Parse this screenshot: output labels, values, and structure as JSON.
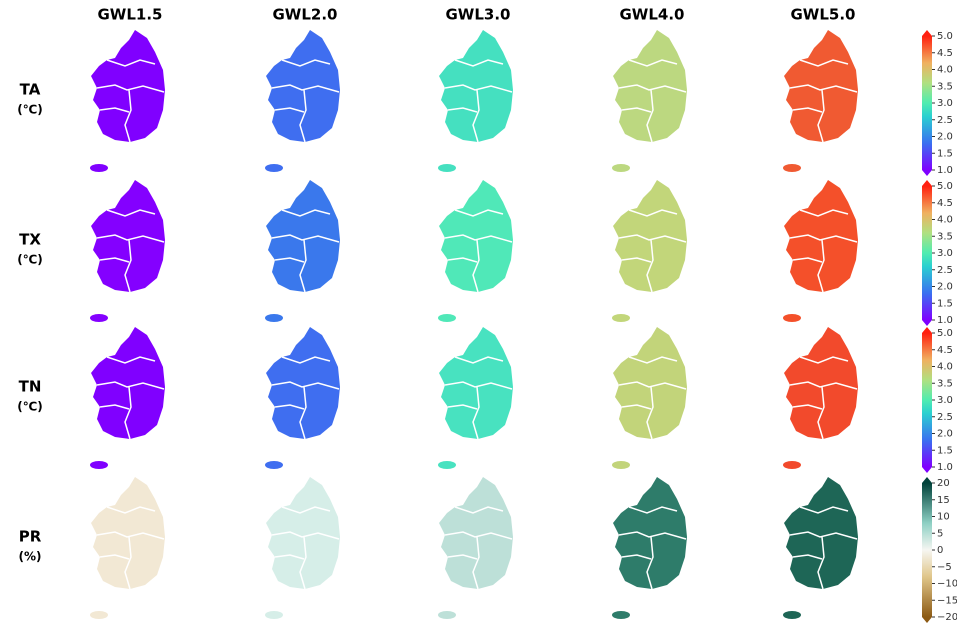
{
  "columns": [
    "GWL1.5",
    "GWL2.0",
    "GWL3.0",
    "GWL4.0",
    "GWL5.0"
  ],
  "rows": [
    {
      "name": "TA",
      "unit": "(℃)",
      "colors": [
        "#8000ff",
        "#3f6ef0",
        "#45e0c0",
        "#bcd880",
        "#f05a32"
      ],
      "colorbar": {
        "lim": [
          1,
          5
        ],
        "ticks": [
          {
            "value": 1,
            "label": "1.0"
          },
          {
            "value": 1.5,
            "label": "1.5"
          },
          {
            "value": 2,
            "label": "2.0"
          },
          {
            "value": 2.5,
            "label": "2.5"
          },
          {
            "value": 3,
            "label": "3.0"
          },
          {
            "value": 3.5,
            "label": "3.5"
          },
          {
            "value": 4,
            "label": "4.0"
          },
          {
            "value": 4.5,
            "label": "4.5"
          },
          {
            "value": 5,
            "label": "5.0"
          }
        ]
      }
    },
    {
      "name": "TX",
      "unit": "(℃)",
      "colors": [
        "#8400ff",
        "#3a78ec",
        "#50e8b8",
        "#c2d67a",
        "#f4502a"
      ],
      "colorbar": {
        "lim": [
          1,
          5
        ],
        "ticks": [
          {
            "value": 1,
            "label": "1.0"
          },
          {
            "value": 1.5,
            "label": "1.5"
          },
          {
            "value": 2,
            "label": "2.0"
          },
          {
            "value": 2.5,
            "label": "2.5"
          },
          {
            "value": 3,
            "label": "3.0"
          },
          {
            "value": 3.5,
            "label": "3.5"
          },
          {
            "value": 4,
            "label": "4.0"
          },
          {
            "value": 4.5,
            "label": "4.5"
          },
          {
            "value": 5,
            "label": "5.0"
          }
        ]
      }
    },
    {
      "name": "TN",
      "unit": "(℃)",
      "colors": [
        "#8000ff",
        "#3f6ef0",
        "#48e2c0",
        "#c2d47a",
        "#f24a2c"
      ],
      "colorbar": {
        "lim": [
          1,
          5
        ],
        "ticks": [
          {
            "value": 1,
            "label": "1.0"
          },
          {
            "value": 1.5,
            "label": "1.5"
          },
          {
            "value": 2,
            "label": "2.0"
          },
          {
            "value": 2.5,
            "label": "2.5"
          },
          {
            "value": 3,
            "label": "3.0"
          },
          {
            "value": 3.5,
            "label": "3.5"
          },
          {
            "value": 4,
            "label": "4.0"
          },
          {
            "value": 4.5,
            "label": "4.5"
          },
          {
            "value": 5,
            "label": "5.0"
          }
        ]
      }
    },
    {
      "name": "PR",
      "unit": "(%)",
      "colors": [
        "#f2e8d4",
        "#d6eee8",
        "#bde0d8",
        "#2e7c6a",
        "#1e6656"
      ],
      "colorbar": {
        "lim": [
          -20,
          20
        ],
        "ticks": [
          {
            "value": -20,
            "label": "−20"
          },
          {
            "value": -15,
            "label": "−15"
          },
          {
            "value": -10,
            "label": "−10"
          },
          {
            "value": -5,
            "label": "−5"
          },
          0,
          5,
          10,
          15,
          20
        ]
      }
    }
  ]
}
